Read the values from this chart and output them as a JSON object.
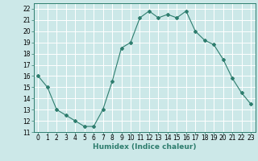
{
  "x": [
    0,
    1,
    2,
    3,
    4,
    5,
    6,
    7,
    8,
    9,
    10,
    11,
    12,
    13,
    14,
    15,
    16,
    17,
    18,
    19,
    20,
    21,
    22,
    23
  ],
  "y": [
    16,
    15,
    13,
    12.5,
    12,
    11.5,
    11.5,
    13,
    15.5,
    18.5,
    19,
    21.2,
    21.8,
    21.2,
    21.5,
    21.2,
    21.8,
    20,
    19.2,
    18.8,
    17.5,
    15.8,
    14.5,
    13.5
  ],
  "line_color": "#2e7d6e",
  "marker": "D",
  "marker_size": 2,
  "bg_color": "#cce8e8",
  "grid_color": "#b0d4d4",
  "xlabel": "Humidex (Indice chaleur)",
  "xlim": [
    -0.5,
    23.5
  ],
  "ylim": [
    11,
    22.5
  ],
  "yticks": [
    11,
    12,
    13,
    14,
    15,
    16,
    17,
    18,
    19,
    20,
    21,
    22
  ],
  "xticks": [
    0,
    1,
    2,
    3,
    4,
    5,
    6,
    7,
    8,
    9,
    10,
    11,
    12,
    13,
    14,
    15,
    16,
    17,
    18,
    19,
    20,
    21,
    22,
    23
  ],
  "tick_label_fontsize": 5.5,
  "xlabel_fontsize": 6.5
}
